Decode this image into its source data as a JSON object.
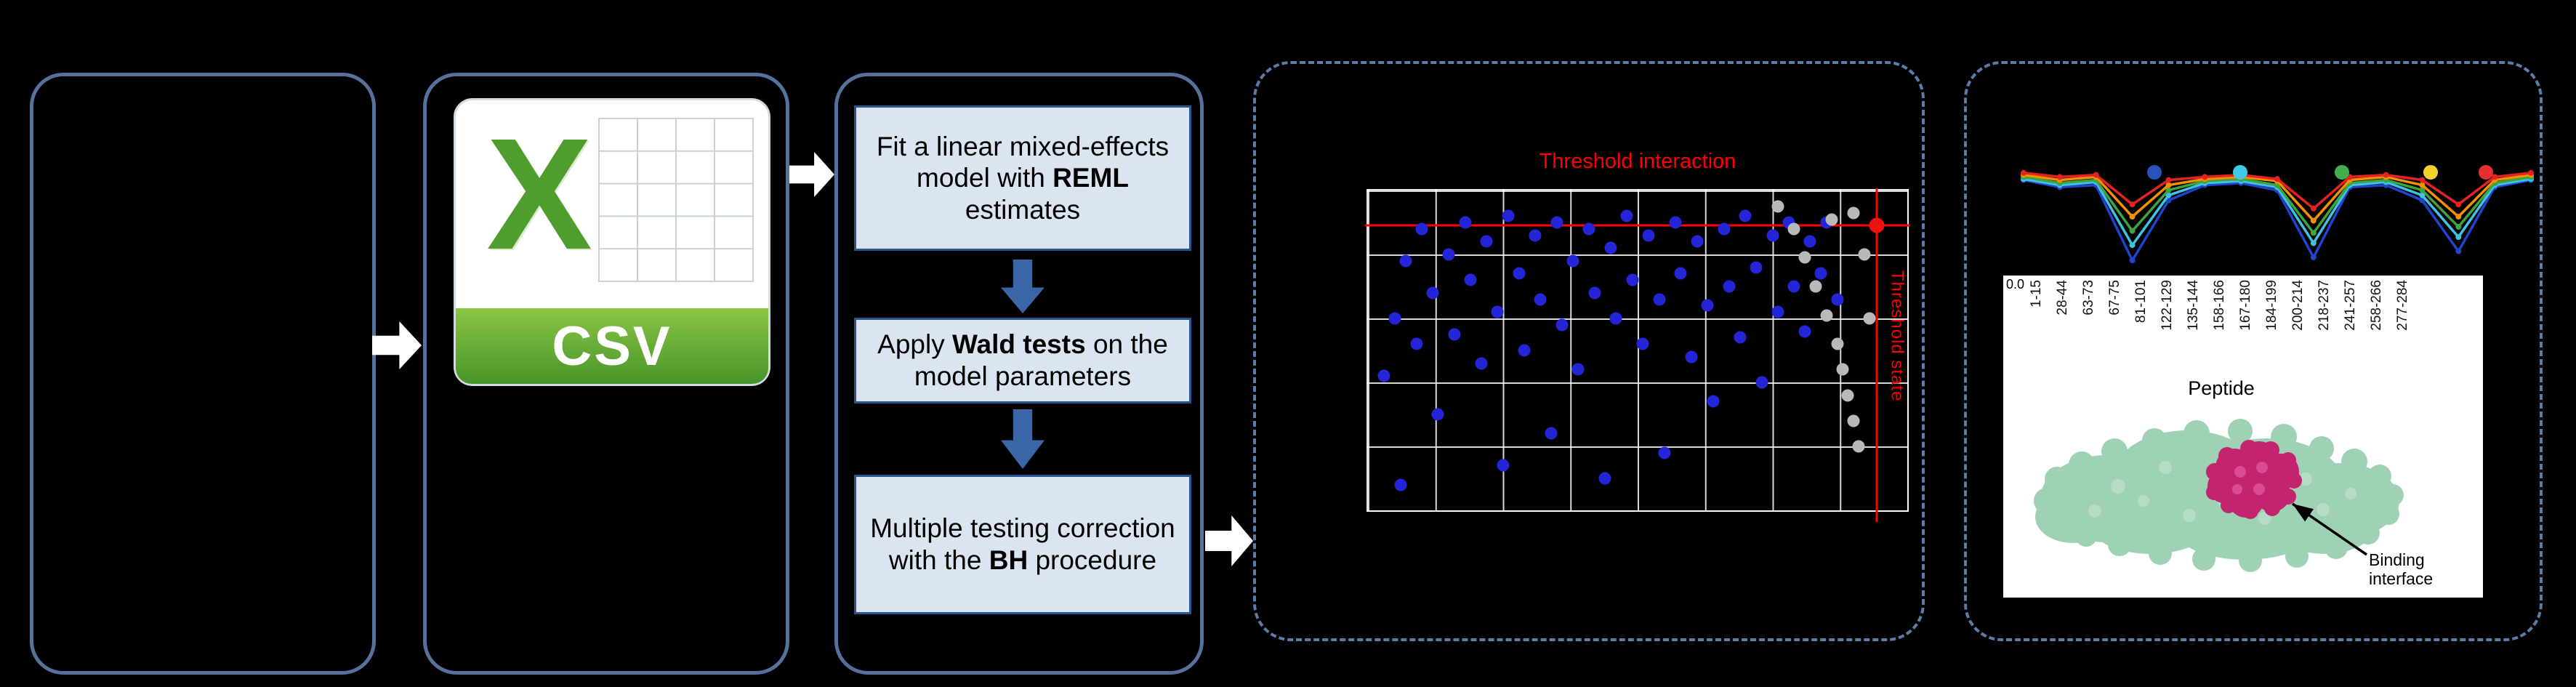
{
  "canvas": {
    "background": "#000000"
  },
  "flow": {
    "csv_icon": {
      "x_letter": "X",
      "label": "CSV"
    },
    "steps": [
      {
        "pre": "Fit a linear mixed-effects model with ",
        "bold": "REML",
        "post": " estimates"
      },
      {
        "pre": "Apply ",
        "bold": "Wald tests",
        "post": " on the model parameters"
      },
      {
        "pre": "Multiple testing correction with the ",
        "bold": "BH",
        "post": " procedure"
      }
    ]
  },
  "results": {
    "annotation": {
      "line1": "Binding",
      "line2": "interface"
    },
    "protein": {
      "surface_color": "#9fd2b4",
      "interface_color": "#c2256e"
    }
  },
  "chart_data": [
    {
      "type": "scatter",
      "title": "Threshold interaction",
      "grid": true,
      "axis_tick_labels_visible": false,
      "thresholds": {
        "y_pct": 89,
        "x_pct": 94.3,
        "y_label": "Threshold interaction",
        "x_label": "Threshold state",
        "color": "#ff0000"
      },
      "series": [
        {
          "name": "significant-peptides",
          "color": "#2525d8",
          "points_pct": [
            [
              3,
              42
            ],
            [
              5,
              60
            ],
            [
              6,
              8
            ],
            [
              7,
              78
            ],
            [
              9,
              52
            ],
            [
              10,
              88
            ],
            [
              12,
              68
            ],
            [
              13,
              30
            ],
            [
              15,
              80
            ],
            [
              16,
              55
            ],
            [
              18,
              90
            ],
            [
              19,
              72
            ],
            [
              21,
              46
            ],
            [
              22,
              84
            ],
            [
              24,
              62
            ],
            [
              25,
              14
            ],
            [
              26,
              92
            ],
            [
              28,
              74
            ],
            [
              29,
              50
            ],
            [
              31,
              86
            ],
            [
              32,
              66
            ],
            [
              34,
              24
            ],
            [
              35,
              90
            ],
            [
              36,
              58
            ],
            [
              38,
              78
            ],
            [
              39,
              44
            ],
            [
              41,
              88
            ],
            [
              42,
              68
            ],
            [
              44,
              10
            ],
            [
              45,
              82
            ],
            [
              46,
              60
            ],
            [
              48,
              92
            ],
            [
              49,
              72
            ],
            [
              51,
              52
            ],
            [
              52,
              86
            ],
            [
              54,
              66
            ],
            [
              55,
              18
            ],
            [
              57,
              90
            ],
            [
              58,
              74
            ],
            [
              60,
              48
            ],
            [
              61,
              84
            ],
            [
              63,
              64
            ],
            [
              64,
              34
            ],
            [
              66,
              88
            ],
            [
              67,
              70
            ],
            [
              69,
              54
            ],
            [
              70,
              92
            ],
            [
              72,
              76
            ],
            [
              73,
              40
            ],
            [
              75,
              86
            ],
            [
              76,
              62
            ],
            [
              78,
              90
            ],
            [
              79,
              70
            ],
            [
              81,
              56
            ],
            [
              82,
              84
            ],
            [
              84,
              74
            ],
            [
              85,
              90
            ],
            [
              87,
              66
            ]
          ]
        },
        {
          "name": "nonsignificant-peptides",
          "color": "#b9b9b9",
          "points_pct": [
            [
              76,
              95
            ],
            [
              79,
              88
            ],
            [
              81,
              79
            ],
            [
              83,
              70
            ],
            [
              85,
              61
            ],
            [
              86,
              91
            ],
            [
              87,
              52
            ],
            [
              88,
              44
            ],
            [
              89,
              36
            ],
            [
              90,
              28
            ],
            [
              91,
              20
            ],
            [
              92,
              80
            ],
            [
              93,
              60
            ],
            [
              90,
              93
            ]
          ]
        },
        {
          "name": "threshold-intersection",
          "color": "#ee1111",
          "points_pct": [
            [
              94.3,
              89
            ]
          ]
        }
      ]
    },
    {
      "type": "line",
      "x_labels": [
        "1-15",
        "28-44",
        "63-73",
        "67-75",
        "81-101",
        "122-129",
        "135-144",
        "158-166",
        "167-180",
        "184-199",
        "200-214",
        "218-237",
        "241-257",
        "258-266",
        "277-284"
      ],
      "xlabel": "Peptide",
      "y_tick_label": "0.0",
      "ylim": [
        0,
        1
      ],
      "legend_colors": [
        "#2a52be",
        "#40c8e8",
        "#3faf4f",
        "#f2d12e",
        "#e43030"
      ],
      "series": [
        {
          "name": "series-darkblue",
          "color": "#2244cc",
          "values": [
            0.86,
            0.79,
            0.81,
            0.07,
            0.66,
            0.81,
            0.83,
            0.76,
            0.1,
            0.79,
            0.81,
            0.66,
            0.16,
            0.79,
            0.86
          ]
        },
        {
          "name": "series-lightblue",
          "color": "#3fc3e3",
          "values": [
            0.87,
            0.81,
            0.84,
            0.22,
            0.71,
            0.83,
            0.85,
            0.79,
            0.24,
            0.81,
            0.84,
            0.71,
            0.3,
            0.81,
            0.87
          ]
        },
        {
          "name": "series-green",
          "color": "#3fa33f",
          "values": [
            0.89,
            0.83,
            0.86,
            0.36,
            0.76,
            0.85,
            0.87,
            0.81,
            0.34,
            0.83,
            0.86,
            0.76,
            0.4,
            0.83,
            0.89
          ]
        },
        {
          "name": "series-orange",
          "color": "#f59000",
          "values": [
            0.91,
            0.86,
            0.89,
            0.5,
            0.81,
            0.87,
            0.89,
            0.85,
            0.46,
            0.86,
            0.89,
            0.81,
            0.5,
            0.86,
            0.91
          ]
        },
        {
          "name": "series-red",
          "color": "#e32222",
          "values": [
            0.93,
            0.89,
            0.91,
            0.62,
            0.86,
            0.89,
            0.91,
            0.87,
            0.58,
            0.89,
            0.91,
            0.86,
            0.62,
            0.89,
            0.93
          ]
        }
      ]
    }
  ]
}
